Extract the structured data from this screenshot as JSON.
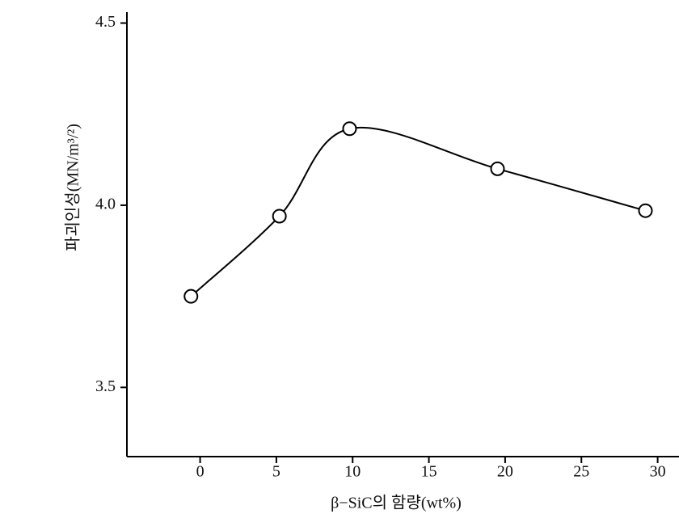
{
  "chart_data": {
    "type": "line",
    "xlabel": "β−SiC의 함량(wt%)",
    "ylabel": "파괴인성(MN/m³/²)",
    "series": [
      {
        "color": "#000000",
        "x": [
          -0.6,
          5.2,
          9.8,
          19.5,
          29.2
        ],
        "values": [
          3.75,
          3.97,
          4.21,
          4.1,
          3.985
        ]
      }
    ],
    "xlim": [
      -4.8,
      31.4
    ],
    "ylim": [
      3.31,
      4.53
    ],
    "xticks": [
      0,
      5,
      10,
      15,
      20,
      25,
      30
    ],
    "yticks": [
      3.5,
      {
        "value": 4,
        "label": "4.0"
      },
      4.5
    ],
    "grid": false
  }
}
